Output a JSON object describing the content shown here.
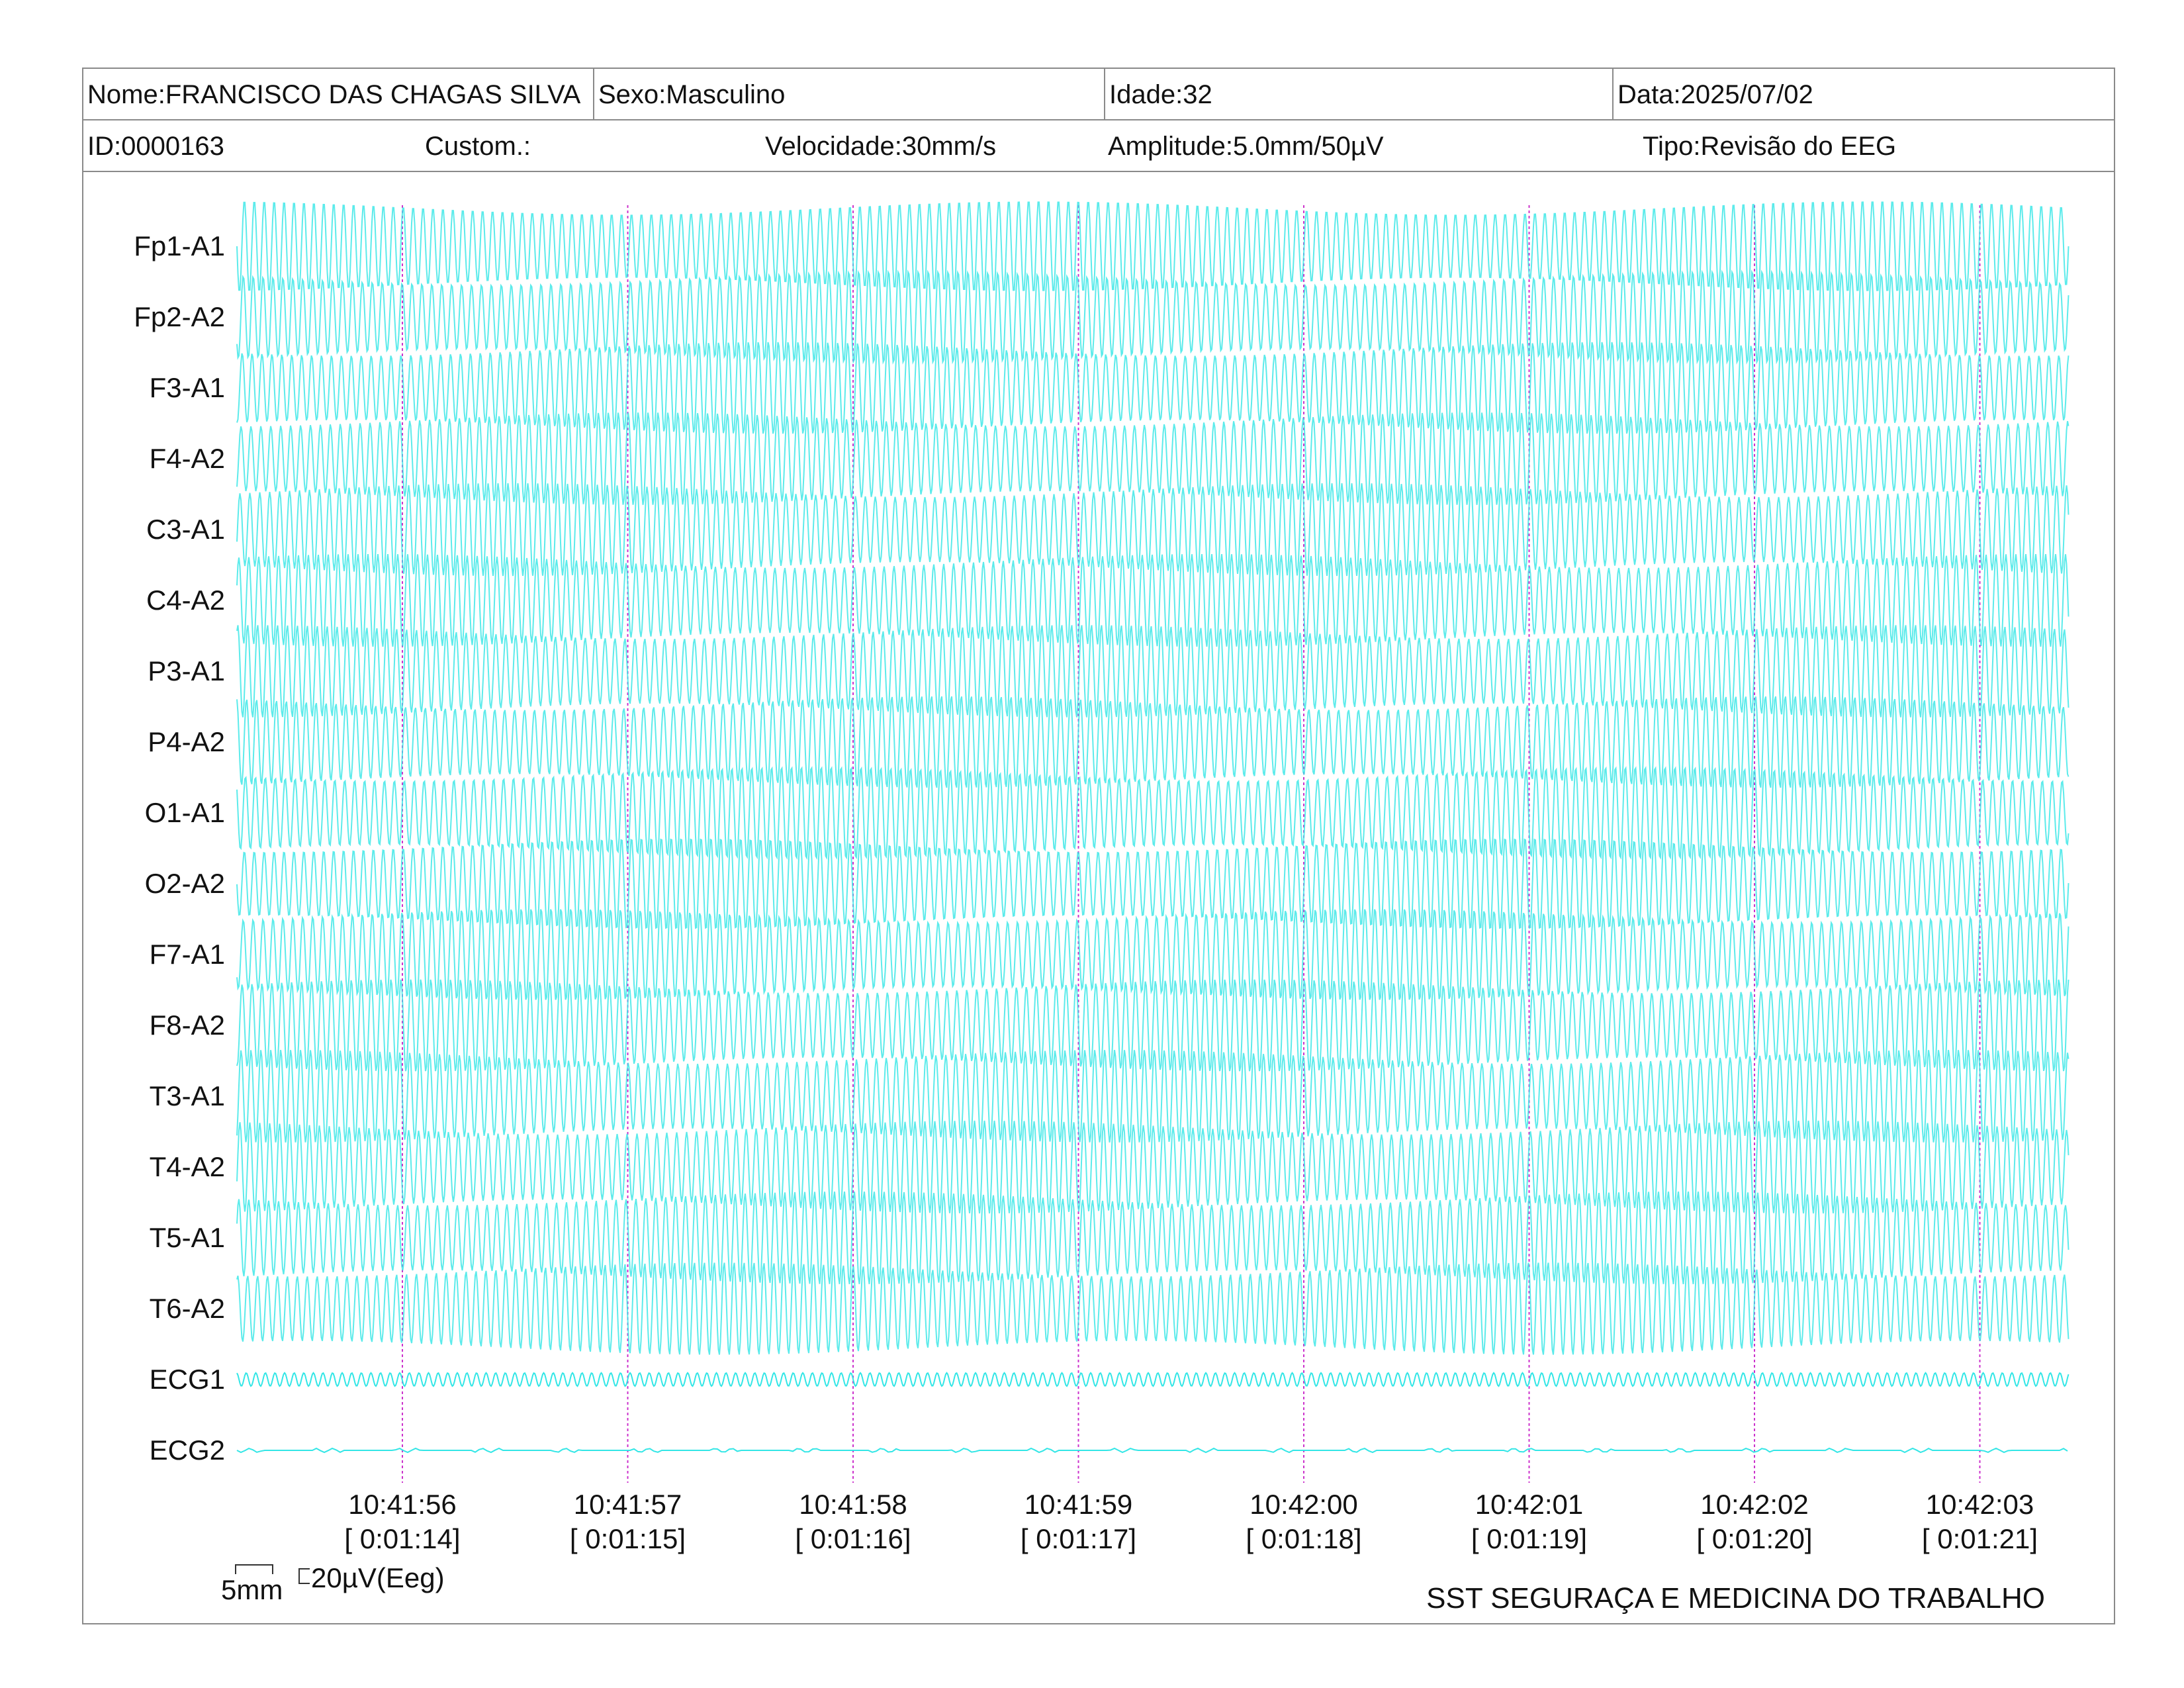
{
  "header": {
    "nome": "Nome:FRANCISCO DAS CHAGAS SILVA",
    "sexo": "Sexo:Masculino",
    "idade": "Idade:32",
    "data": "Data:2025/07/02",
    "id": "ID:0000163",
    "custom": "Custom.:",
    "velocidade": "Velocidade:30mm/s",
    "amplitude": "Amplitude:5.0mm/50µV",
    "tipo": "Tipo:Revisão do EEG"
  },
  "channels": [
    "Fp1-A1",
    "Fp2-A2",
    "F3-A1",
    "F4-A2",
    "C3-A1",
    "C4-A2",
    "P3-A1",
    "P4-A2",
    "O1-A1",
    "O2-A2",
    "F7-A1",
    "F8-A2",
    "T3-A1",
    "T4-A2",
    "T5-A1",
    "T6-A2",
    "ECG1",
    "ECG2"
  ],
  "time_markers": [
    {
      "time": "10:41:56",
      "elapsed": "[ 0:01:14]"
    },
    {
      "time": "10:41:57",
      "elapsed": "[ 0:01:15]"
    },
    {
      "time": "10:41:58",
      "elapsed": "[ 0:01:16]"
    },
    {
      "time": "10:41:59",
      "elapsed": "[ 0:01:17]"
    },
    {
      "time": "10:42:00",
      "elapsed": "[ 0:01:18]"
    },
    {
      "time": "10:42:01",
      "elapsed": "[ 0:01:19]"
    },
    {
      "time": "10:42:02",
      "elapsed": "[ 0:01:20]"
    },
    {
      "time": "10:42:03",
      "elapsed": "[ 0:01:21]"
    }
  ],
  "scale": {
    "time_label": "5mm",
    "amplitude_label": "20µV(Eeg)"
  },
  "footer": "SST SEGURAÇA E MEDICINA DO TRABALHO",
  "colors": {
    "trace": "#33e6e6",
    "marker": "#cc33cc",
    "border": "#8a8a8a"
  }
}
